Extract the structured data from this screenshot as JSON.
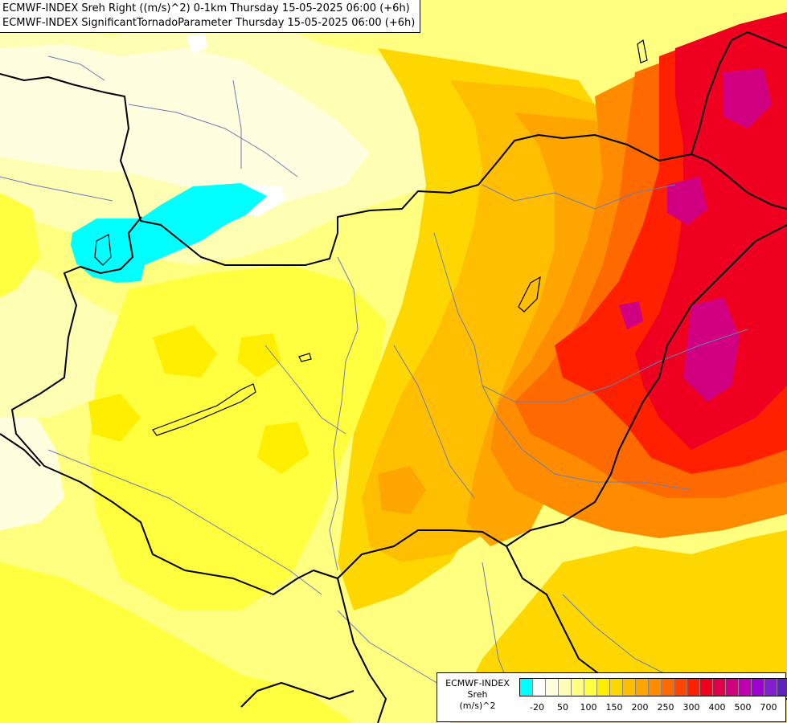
{
  "header": {
    "line1": "ECMWF-INDEX Sreh Right ((m/s)^2) 0-1km Thursday 15-05-2025 06:00 (+6h)",
    "line2": "ECMWF-INDEX SignificantTornadoParameter Thursday 15-05-2025 06:00 (+6h)"
  },
  "legend": {
    "source": "ECMWF-INDEX",
    "variable": "Sreh",
    "unit": "(m/s)^2",
    "colors": [
      "#00ffff",
      "#ffffff",
      "#ffffe0",
      "#ffffb4",
      "#ffff80",
      "#ffff40",
      "#ffee00",
      "#ffd700",
      "#ffbe00",
      "#ffa500",
      "#ff8c00",
      "#ff6a00",
      "#ff4500",
      "#ff2000",
      "#f00020",
      "#e0004a",
      "#d00080",
      "#c000b0",
      "#a000d0",
      "#8020d0",
      "#6020c0",
      "#4020a0",
      "#200080"
    ],
    "ticks": [
      "-20",
      "50",
      "100",
      "150",
      "200",
      "250",
      "300",
      "400",
      "500",
      "700"
    ]
  },
  "map": {
    "fill_colors": {
      "base": "#ffff80",
      "pale": "#ffffb4",
      "palest": "#ffffe0",
      "yellow": "#ffff40",
      "gold": "#ffee00",
      "amber": "#ffd700",
      "orange_light": "#ffbe00",
      "orange": "#ffa500",
      "orange_dark": "#ff8c00",
      "red_orange": "#ff6a00",
      "red": "#ff2000",
      "crimson": "#f00020",
      "magenta": "#d00080",
      "cyan": "#00ffff",
      "white": "#ffffff"
    }
  }
}
